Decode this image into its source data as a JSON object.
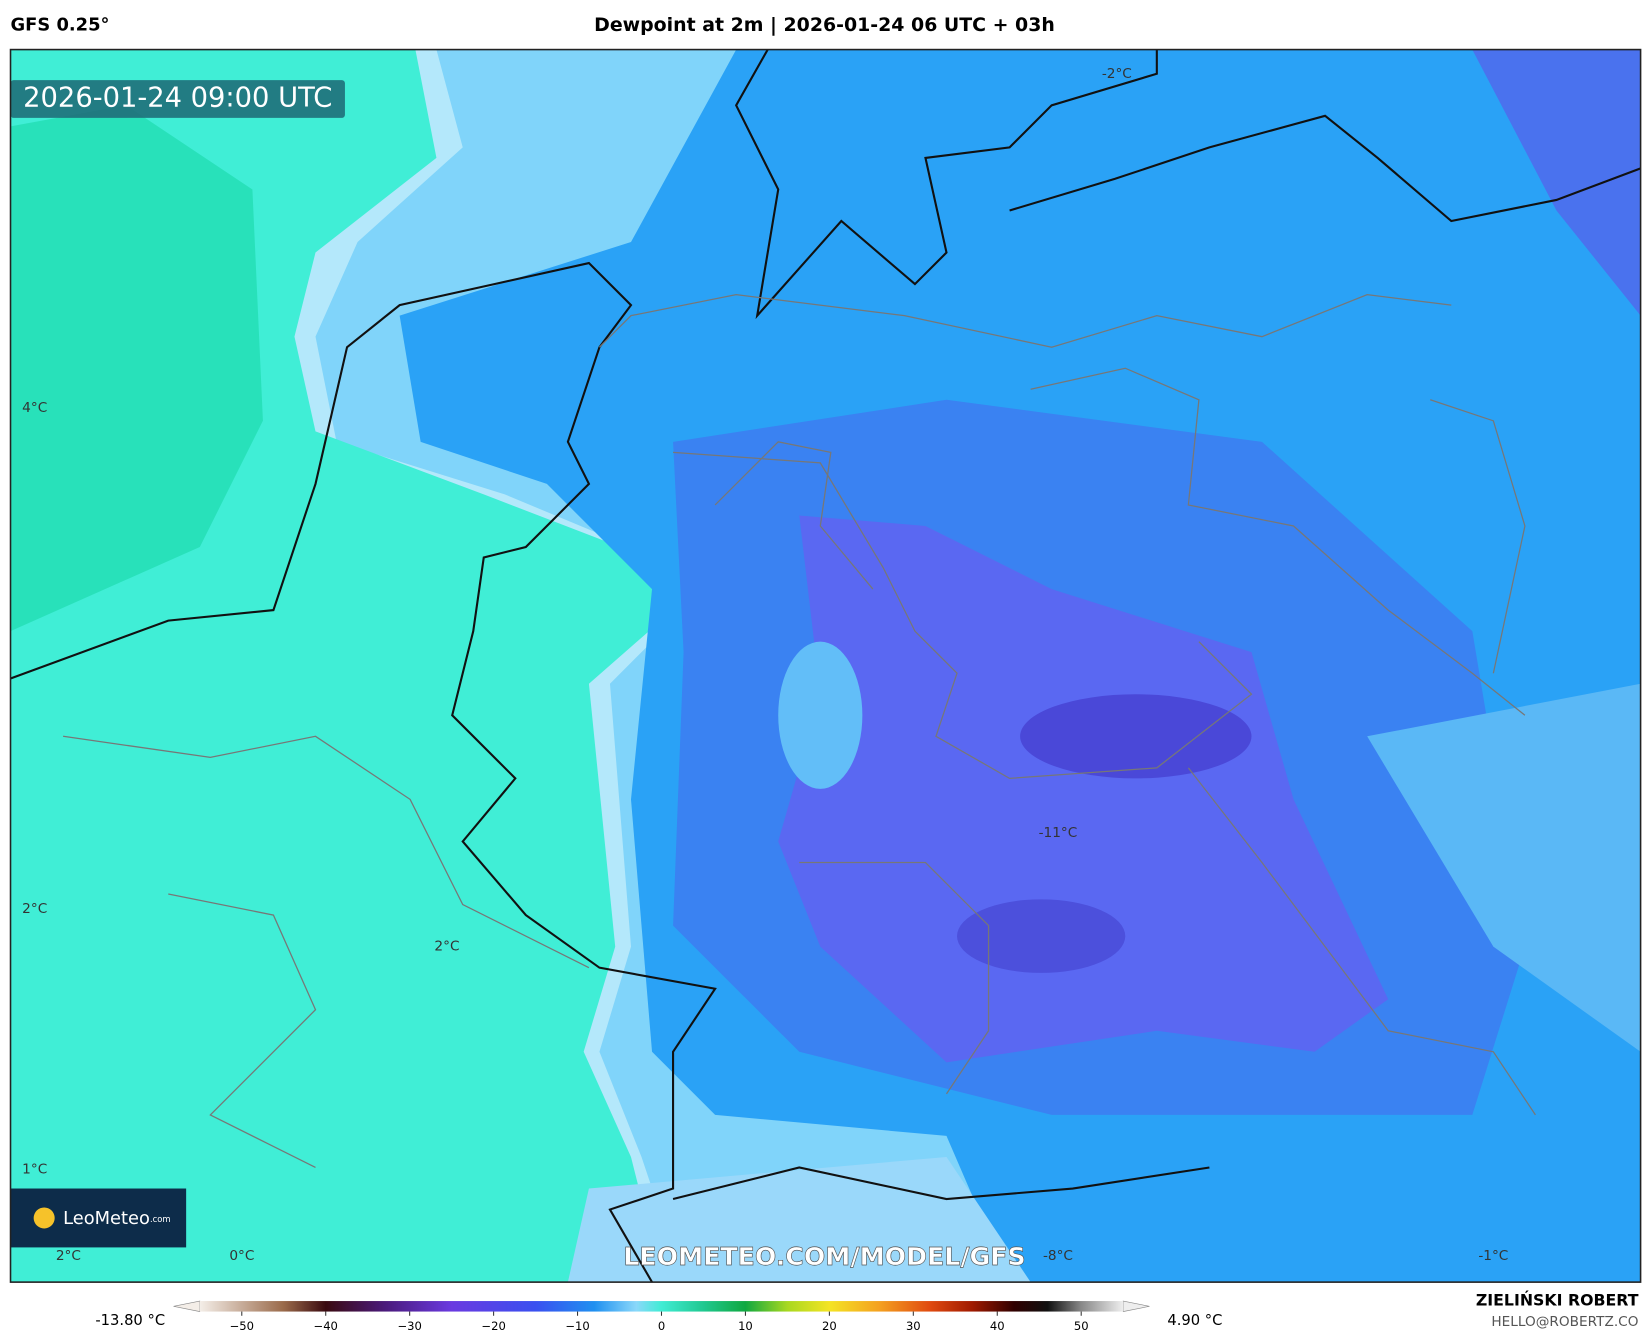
{
  "header": {
    "model": "GFS 0.25°",
    "title": "Dewpoint at 2m | 2026-01-24 06 UTC + 03h"
  },
  "map": {
    "valid_time": "2026-01-24 09:00 UTC",
    "watermark": "LEOMETEO.COM/MODEL/GFS",
    "logo": {
      "name": "LeoMeteo",
      "suffix": ".com"
    },
    "contour_labels": [
      "4°C",
      "2°C",
      "2°C",
      "1°C",
      "2°C",
      "0°C",
      "-8°C",
      "-1°C",
      "-11°C",
      "-2°C"
    ]
  },
  "colorbar": {
    "range": [
      -55,
      55
    ],
    "ticks": [
      {
        "value": -50,
        "label": "−50"
      },
      {
        "value": -40,
        "label": "−40"
      },
      {
        "value": -30,
        "label": "−30"
      },
      {
        "value": -20,
        "label": "−20"
      },
      {
        "value": -10,
        "label": "−10"
      },
      0,
      10,
      20,
      30,
      40,
      50
    ],
    "min_label": "-13.80 °C",
    "max_label": "4.90 °C"
  },
  "credit": {
    "author": "ZIELIŃSKI ROBERT",
    "email": "HELLO@ROBERTZ.CO"
  }
}
